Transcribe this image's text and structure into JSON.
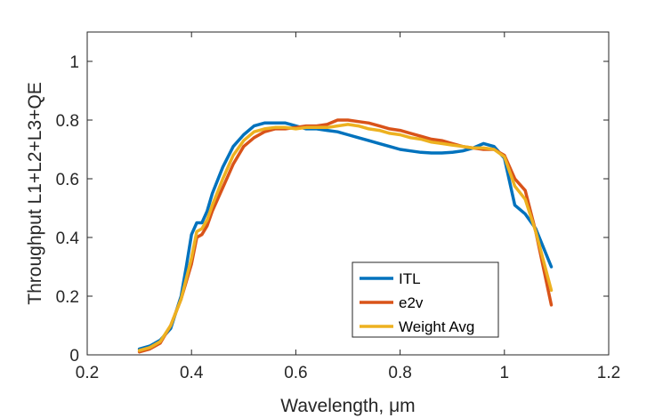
{
  "chart_data": {
    "type": "line",
    "xlabel": "Wavelength, μm",
    "ylabel": "Throughput  L1+L2+L3+QE",
    "xlim": [
      0.2,
      1.2
    ],
    "ylim": [
      0,
      1.1
    ],
    "x_ticks": [
      "0.2",
      "0.4",
      "0.6",
      "0.8",
      "1",
      "1.2"
    ],
    "y_ticks": [
      "0",
      "0.2",
      "0.4",
      "0.6",
      "0.8",
      "1"
    ],
    "grid": false,
    "legend_position": "bottom-right",
    "series": [
      {
        "name": "ITL",
        "color": "#0072BD",
        "x": [
          0.3,
          0.32,
          0.34,
          0.36,
          0.38,
          0.39,
          0.4,
          0.41,
          0.42,
          0.43,
          0.44,
          0.46,
          0.48,
          0.5,
          0.52,
          0.54,
          0.56,
          0.58,
          0.6,
          0.62,
          0.64,
          0.66,
          0.68,
          0.7,
          0.72,
          0.74,
          0.76,
          0.78,
          0.8,
          0.82,
          0.84,
          0.86,
          0.88,
          0.9,
          0.92,
          0.94,
          0.96,
          0.98,
          1.0,
          1.02,
          1.04,
          1.06,
          1.09
        ],
        "y": [
          0.02,
          0.03,
          0.05,
          0.09,
          0.2,
          0.3,
          0.41,
          0.45,
          0.45,
          0.49,
          0.55,
          0.64,
          0.71,
          0.75,
          0.78,
          0.79,
          0.79,
          0.79,
          0.78,
          0.77,
          0.77,
          0.765,
          0.76,
          0.75,
          0.74,
          0.73,
          0.72,
          0.71,
          0.7,
          0.695,
          0.69,
          0.688,
          0.688,
          0.69,
          0.695,
          0.705,
          0.72,
          0.71,
          0.67,
          0.51,
          0.48,
          0.43,
          0.3
        ]
      },
      {
        "name": "e2v",
        "color": "#D95319",
        "x": [
          0.3,
          0.32,
          0.34,
          0.36,
          0.38,
          0.4,
          0.41,
          0.42,
          0.43,
          0.44,
          0.46,
          0.48,
          0.5,
          0.52,
          0.54,
          0.56,
          0.58,
          0.6,
          0.62,
          0.64,
          0.66,
          0.68,
          0.7,
          0.72,
          0.74,
          0.76,
          0.78,
          0.8,
          0.82,
          0.84,
          0.86,
          0.88,
          0.9,
          0.92,
          0.94,
          0.96,
          0.98,
          1.0,
          1.02,
          1.04,
          1.06,
          1.09
        ],
        "y": [
          0.01,
          0.02,
          0.04,
          0.1,
          0.19,
          0.31,
          0.4,
          0.41,
          0.44,
          0.49,
          0.57,
          0.65,
          0.71,
          0.74,
          0.76,
          0.77,
          0.77,
          0.775,
          0.78,
          0.78,
          0.785,
          0.8,
          0.8,
          0.795,
          0.79,
          0.78,
          0.77,
          0.765,
          0.755,
          0.745,
          0.735,
          0.73,
          0.72,
          0.71,
          0.705,
          0.7,
          0.7,
          0.68,
          0.6,
          0.56,
          0.42,
          0.17
        ]
      },
      {
        "name": "Weight Avg",
        "color": "#EDB120",
        "x": [
          0.3,
          0.32,
          0.34,
          0.36,
          0.38,
          0.4,
          0.41,
          0.42,
          0.43,
          0.44,
          0.46,
          0.48,
          0.5,
          0.52,
          0.54,
          0.56,
          0.58,
          0.6,
          0.62,
          0.64,
          0.66,
          0.68,
          0.7,
          0.72,
          0.74,
          0.76,
          0.78,
          0.8,
          0.82,
          0.84,
          0.86,
          0.88,
          0.9,
          0.92,
          0.94,
          0.96,
          0.98,
          1.0,
          1.02,
          1.04,
          1.06,
          1.09
        ],
        "y": [
          0.015,
          0.025,
          0.045,
          0.1,
          0.19,
          0.33,
          0.42,
          0.43,
          0.46,
          0.51,
          0.6,
          0.68,
          0.73,
          0.76,
          0.77,
          0.775,
          0.775,
          0.77,
          0.775,
          0.775,
          0.775,
          0.78,
          0.785,
          0.78,
          0.77,
          0.765,
          0.755,
          0.75,
          0.74,
          0.735,
          0.725,
          0.72,
          0.715,
          0.71,
          0.705,
          0.705,
          0.7,
          0.675,
          0.575,
          0.53,
          0.42,
          0.22
        ]
      }
    ]
  }
}
